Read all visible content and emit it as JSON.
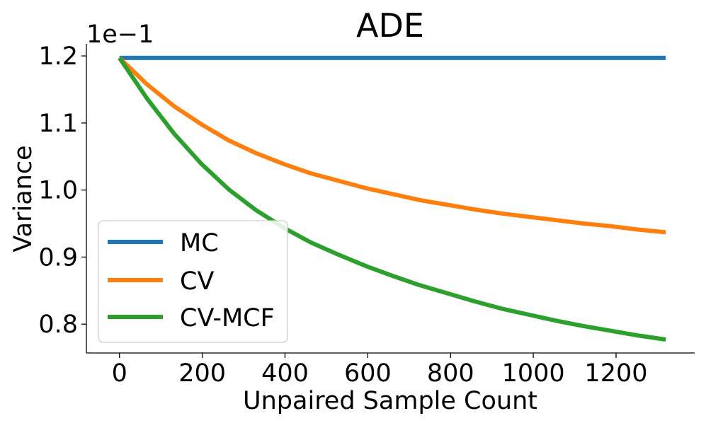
{
  "chart_data": {
    "type": "line",
    "title": "ADE",
    "xlabel": "Unpaired Sample Count",
    "ylabel": "Variance",
    "y_offset_label": "1e−1",
    "xlim": [
      -80,
      1390
    ],
    "ylim": [
      0.757,
      1.218
    ],
    "x_ticks": [
      0,
      200,
      400,
      600,
      800,
      1000,
      1200
    ],
    "x_tick_labels": [
      "0",
      "200",
      "400",
      "600",
      "800",
      "1000",
      "1200"
    ],
    "y_ticks": [
      0.8,
      0.9,
      1.0,
      1.1,
      1.2
    ],
    "y_tick_labels": [
      "0.8",
      "0.9",
      "1.0",
      "1.1",
      "1.2"
    ],
    "grid": false,
    "legend_position": "lower-left",
    "x": [
      0,
      66,
      132,
      198,
      264,
      330,
      396,
      462,
      528,
      594,
      660,
      726,
      792,
      858,
      924,
      990,
      1056,
      1122,
      1188,
      1254,
      1320
    ],
    "series": [
      {
        "name": "MC",
        "color": "#1f77b4",
        "values": [
          1.197,
          1.197,
          1.197,
          1.197,
          1.197,
          1.197,
          1.197,
          1.197,
          1.197,
          1.197,
          1.197,
          1.197,
          1.197,
          1.197,
          1.197,
          1.197,
          1.197,
          1.197,
          1.197,
          1.197,
          1.197
        ]
      },
      {
        "name": "CV",
        "color": "#ff7f0e",
        "values": [
          1.197,
          1.158,
          1.125,
          1.098,
          1.074,
          1.055,
          1.039,
          1.025,
          1.014,
          1.003,
          0.994,
          0.985,
          0.978,
          0.971,
          0.965,
          0.96,
          0.955,
          0.95,
          0.946,
          0.941,
          0.937
        ]
      },
      {
        "name": "CV-MCF",
        "color": "#2ca02c",
        "values": [
          1.197,
          1.137,
          1.084,
          1.039,
          1.001,
          0.97,
          0.944,
          0.922,
          0.904,
          0.887,
          0.872,
          0.858,
          0.846,
          0.834,
          0.823,
          0.814,
          0.805,
          0.797,
          0.79,
          0.783,
          0.777
        ]
      }
    ]
  }
}
